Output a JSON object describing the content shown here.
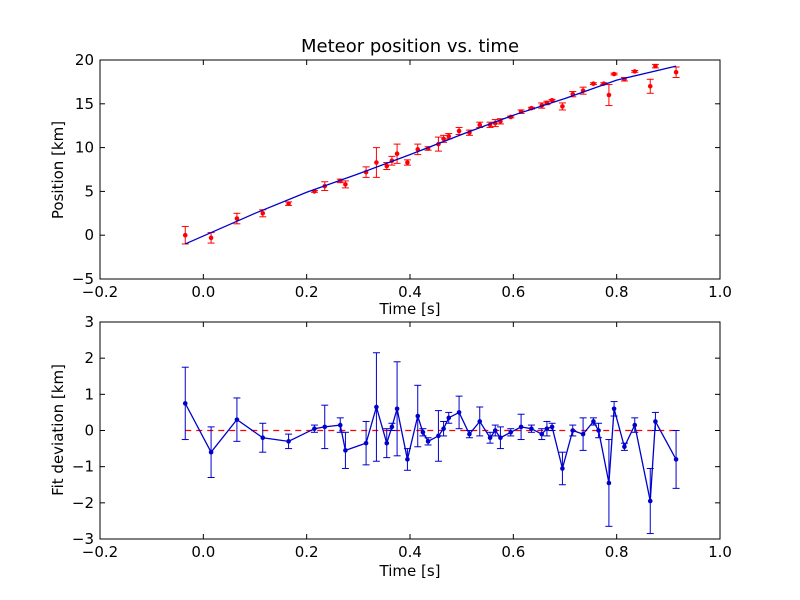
{
  "chart_data": [
    {
      "type": "scatter",
      "title": "Meteor position vs. time",
      "xlabel": "Time [s]",
      "ylabel": "Position [km]",
      "xlim": [
        -0.2,
        1.0
      ],
      "ylim": [
        -5,
        20
      ],
      "xticks": [
        "−0.2",
        "0.0",
        "0.2",
        "0.4",
        "0.6",
        "0.8",
        "1.0"
      ],
      "yticks": [
        "−5",
        "0",
        "5",
        "10",
        "15",
        "20"
      ],
      "grid": false,
      "colors": {
        "points": "#ff0000",
        "fit": "#0000cc"
      },
      "series": [
        {
          "style": "points-with-errorbars",
          "points": [
            [
              -0.035,
              0.0,
              1.0
            ],
            [
              0.015,
              -0.3,
              0.6
            ],
            [
              0.065,
              1.9,
              0.6
            ],
            [
              0.115,
              2.5,
              0.4
            ],
            [
              0.165,
              3.6,
              0.2
            ],
            [
              0.215,
              5.0,
              0.1
            ],
            [
              0.235,
              5.6,
              0.5
            ],
            [
              0.265,
              6.2,
              0.2
            ],
            [
              0.275,
              5.8,
              0.4
            ],
            [
              0.315,
              7.2,
              0.6
            ],
            [
              0.335,
              8.3,
              1.7
            ],
            [
              0.355,
              7.9,
              0.4
            ],
            [
              0.365,
              8.5,
              0.5
            ],
            [
              0.375,
              9.3,
              1.1
            ],
            [
              0.395,
              8.3,
              0.3
            ],
            [
              0.415,
              9.8,
              0.6
            ],
            [
              0.435,
              9.9,
              0.2
            ],
            [
              0.455,
              10.4,
              0.8
            ],
            [
              0.465,
              11.0,
              0.4
            ],
            [
              0.475,
              11.3,
              0.3
            ],
            [
              0.495,
              11.9,
              0.4
            ],
            [
              0.515,
              11.7,
              0.3
            ],
            [
              0.535,
              12.6,
              0.3
            ],
            [
              0.555,
              12.6,
              0.3
            ],
            [
              0.565,
              12.8,
              0.4
            ],
            [
              0.575,
              13.0,
              0.3
            ],
            [
              0.595,
              13.5,
              0.1
            ],
            [
              0.615,
              14.1,
              0.2
            ],
            [
              0.635,
              14.5,
              0.1
            ],
            [
              0.655,
              14.8,
              0.3
            ],
            [
              0.665,
              15.1,
              0.2
            ],
            [
              0.675,
              15.4,
              0.1
            ],
            [
              0.695,
              14.7,
              0.4
            ],
            [
              0.715,
              16.1,
              0.3
            ],
            [
              0.735,
              16.5,
              0.4
            ],
            [
              0.755,
              17.3,
              0.1
            ],
            [
              0.775,
              17.3,
              0.1
            ],
            [
              0.785,
              16.0,
              1.2
            ],
            [
              0.795,
              18.4,
              0.1
            ],
            [
              0.815,
              17.8,
              0.2
            ],
            [
              0.835,
              18.7,
              0.1
            ],
            [
              0.865,
              17.0,
              0.8
            ],
            [
              0.875,
              19.3,
              0.2
            ],
            [
              0.915,
              18.6,
              0.6
            ]
          ]
        },
        {
          "style": "line",
          "x": [
            -0.035,
            0.1,
            0.2,
            0.3,
            0.4,
            0.5,
            0.6,
            0.7,
            0.8,
            0.915
          ],
          "y": [
            -1.0,
            2.5,
            4.9,
            7.0,
            9.2,
            11.5,
            13.7,
            15.6,
            17.7,
            19.3
          ]
        }
      ]
    },
    {
      "type": "line",
      "xlabel": "Time [s]",
      "ylabel": "Fit deviation [km]",
      "xlim": [
        -0.2,
        1.0
      ],
      "ylim": [
        -3,
        3
      ],
      "xticks": [
        "−0.2",
        "0.0",
        "0.2",
        "0.4",
        "0.6",
        "0.8",
        "1.0"
      ],
      "yticks": [
        "−3",
        "−2",
        "−1",
        "0",
        "1",
        "2",
        "3"
      ],
      "grid": false,
      "reference_line": {
        "y": 0,
        "style": "dashed",
        "color": "#ff0000"
      },
      "colors": {
        "series": "#0000cc"
      },
      "series": [
        {
          "style": "line-with-errorbars",
          "points": [
            [
              -0.035,
              0.75,
              1.0
            ],
            [
              0.015,
              -0.6,
              0.7
            ],
            [
              0.065,
              0.3,
              0.6
            ],
            [
              0.115,
              -0.2,
              0.4
            ],
            [
              0.165,
              -0.3,
              0.2
            ],
            [
              0.215,
              0.05,
              0.1
            ],
            [
              0.235,
              0.1,
              0.6
            ],
            [
              0.265,
              0.15,
              0.2
            ],
            [
              0.275,
              -0.55,
              0.5
            ],
            [
              0.315,
              -0.35,
              0.6
            ],
            [
              0.335,
              0.65,
              1.5
            ],
            [
              0.355,
              -0.35,
              0.4
            ],
            [
              0.365,
              0.1,
              0.1
            ],
            [
              0.375,
              0.6,
              1.3
            ],
            [
              0.395,
              -0.8,
              0.3
            ],
            [
              0.415,
              0.4,
              0.85
            ],
            [
              0.425,
              -0.05,
              0.1
            ],
            [
              0.435,
              -0.3,
              0.1
            ],
            [
              0.455,
              -0.15,
              0.7
            ],
            [
              0.465,
              0.05,
              0.2
            ],
            [
              0.475,
              0.35,
              0.15
            ],
            [
              0.495,
              0.5,
              0.45
            ],
            [
              0.515,
              -0.1,
              0.1
            ],
            [
              0.535,
              0.25,
              0.4
            ],
            [
              0.555,
              -0.2,
              0.15
            ],
            [
              0.565,
              0.0,
              0.15
            ],
            [
              0.575,
              -0.2,
              0.3
            ],
            [
              0.595,
              -0.05,
              0.1
            ],
            [
              0.615,
              0.1,
              0.35
            ],
            [
              0.635,
              0.05,
              0.1
            ],
            [
              0.655,
              -0.1,
              0.15
            ],
            [
              0.665,
              0.05,
              0.2
            ],
            [
              0.675,
              0.1,
              0.1
            ],
            [
              0.695,
              -1.05,
              0.45
            ],
            [
              0.715,
              0.0,
              0.15
            ],
            [
              0.735,
              -0.1,
              0.45
            ],
            [
              0.755,
              0.25,
              0.1
            ],
            [
              0.765,
              0.0,
              0.2
            ],
            [
              0.785,
              -1.45,
              1.2
            ],
            [
              0.795,
              0.6,
              0.2
            ],
            [
              0.815,
              -0.45,
              0.1
            ],
            [
              0.835,
              0.15,
              0.2
            ],
            [
              0.865,
              -1.95,
              0.9
            ],
            [
              0.875,
              0.25,
              0.25
            ],
            [
              0.915,
              -0.8,
              0.8
            ]
          ]
        }
      ]
    }
  ]
}
